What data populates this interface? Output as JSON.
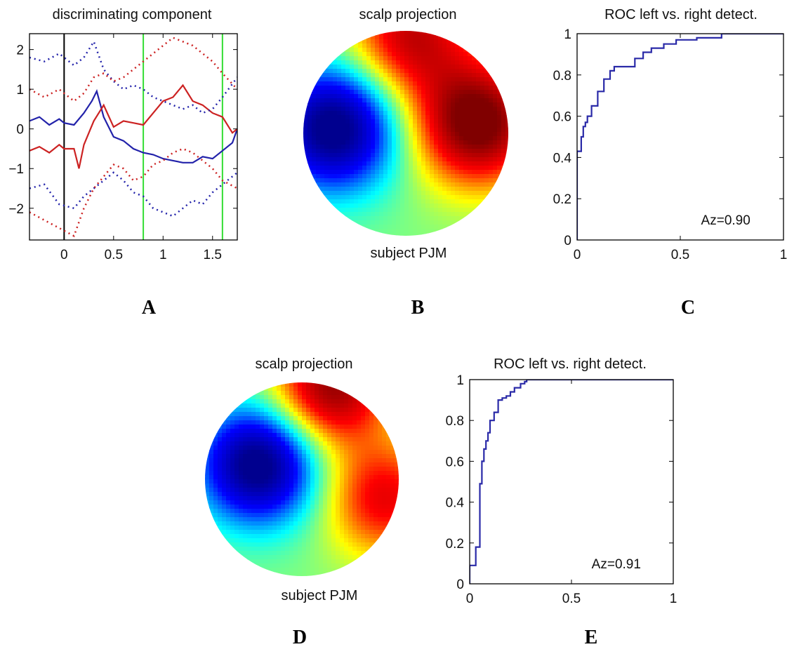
{
  "labels": {
    "A": "A",
    "B": "B",
    "C": "C",
    "D": "D",
    "E": "E"
  },
  "chart_data": [
    {
      "id": "A",
      "type": "line",
      "title": "discriminating component",
      "xlim": [
        -0.35,
        1.75
      ],
      "ylim": [
        -2.8,
        2.4
      ],
      "xticks": [
        0,
        0.5,
        1,
        1.5
      ],
      "xtick_labels": [
        "0",
        "0.5",
        "1",
        "1.5"
      ],
      "yticks": [
        -2,
        -1,
        0,
        1,
        2
      ],
      "ytick_labels": [
        "−2",
        "−1",
        "0",
        "1",
        "2"
      ],
      "vlines": [
        {
          "x": 0,
          "color": "#000000"
        },
        {
          "x": 0.8,
          "color": "#33dd33"
        },
        {
          "x": 1.6,
          "color": "#33dd33"
        }
      ],
      "series": [
        {
          "color": "#2222aa",
          "style": "solid",
          "x": [
            -0.35,
            -0.25,
            -0.15,
            -0.05,
            0.0,
            0.1,
            0.2,
            0.28,
            0.33,
            0.4,
            0.5,
            0.6,
            0.7,
            0.8,
            0.9,
            1.0,
            1.1,
            1.2,
            1.3,
            1.4,
            1.5,
            1.6,
            1.7,
            1.75
          ],
          "y": [
            0.2,
            0.3,
            0.1,
            0.25,
            0.15,
            0.1,
            0.4,
            0.7,
            0.95,
            0.3,
            -0.2,
            -0.3,
            -0.5,
            -0.6,
            -0.65,
            -0.75,
            -0.8,
            -0.85,
            -0.85,
            -0.7,
            -0.75,
            -0.55,
            -0.35,
            0.0
          ]
        },
        {
          "color": "#cc2222",
          "style": "solid",
          "x": [
            -0.35,
            -0.25,
            -0.15,
            -0.05,
            0.0,
            0.1,
            0.15,
            0.2,
            0.3,
            0.4,
            0.5,
            0.6,
            0.7,
            0.8,
            0.9,
            1.0,
            1.1,
            1.2,
            1.3,
            1.4,
            1.5,
            1.6,
            1.7,
            1.75
          ],
          "y": [
            -0.55,
            -0.45,
            -0.6,
            -0.4,
            -0.5,
            -0.5,
            -1.0,
            -0.4,
            0.2,
            0.6,
            0.05,
            0.2,
            0.15,
            0.1,
            0.4,
            0.7,
            0.8,
            1.1,
            0.7,
            0.6,
            0.4,
            0.3,
            -0.1,
            0.0
          ]
        },
        {
          "color": "#2222aa",
          "style": "dotted",
          "x": [
            -0.35,
            -0.2,
            -0.05,
            0.1,
            0.2,
            0.3,
            0.4,
            0.5,
            0.6,
            0.7,
            0.8,
            0.9,
            1.0,
            1.1,
            1.2,
            1.3,
            1.4,
            1.5,
            1.6,
            1.75
          ],
          "y": [
            1.8,
            1.7,
            1.9,
            1.6,
            1.8,
            2.2,
            1.5,
            1.2,
            1.0,
            1.1,
            1.0,
            0.8,
            0.7,
            0.6,
            0.5,
            0.6,
            0.4,
            0.5,
            0.8,
            1.3
          ]
        },
        {
          "color": "#2222aa",
          "style": "dotted",
          "x": [
            -0.35,
            -0.2,
            -0.05,
            0.1,
            0.2,
            0.3,
            0.4,
            0.5,
            0.6,
            0.7,
            0.8,
            0.9,
            1.0,
            1.1,
            1.2,
            1.3,
            1.4,
            1.5,
            1.6,
            1.75
          ],
          "y": [
            -1.5,
            -1.4,
            -1.9,
            -2.0,
            -1.7,
            -1.5,
            -1.3,
            -1.1,
            -1.3,
            -1.6,
            -1.7,
            -2.0,
            -2.1,
            -2.2,
            -2.0,
            -1.8,
            -1.9,
            -1.6,
            -1.4,
            -1.1
          ]
        },
        {
          "color": "#cc2222",
          "style": "dotted",
          "x": [
            -0.35,
            -0.2,
            -0.05,
            0.1,
            0.2,
            0.3,
            0.4,
            0.5,
            0.6,
            0.7,
            0.8,
            0.9,
            1.0,
            1.1,
            1.2,
            1.3,
            1.4,
            1.5,
            1.6,
            1.75
          ],
          "y": [
            1.0,
            0.8,
            1.0,
            0.7,
            0.9,
            1.3,
            1.4,
            1.2,
            1.3,
            1.5,
            1.7,
            1.9,
            2.1,
            2.3,
            2.2,
            2.1,
            1.9,
            1.7,
            1.4,
            1.0
          ]
        },
        {
          "color": "#cc2222",
          "style": "dotted",
          "x": [
            -0.35,
            -0.2,
            -0.05,
            0.1,
            0.2,
            0.3,
            0.4,
            0.5,
            0.6,
            0.7,
            0.8,
            0.9,
            1.0,
            1.1,
            1.2,
            1.3,
            1.4,
            1.5,
            1.6,
            1.75
          ],
          "y": [
            -2.1,
            -2.3,
            -2.5,
            -2.7,
            -2.0,
            -1.5,
            -1.2,
            -0.9,
            -1.0,
            -1.3,
            -1.2,
            -0.9,
            -0.8,
            -0.6,
            -0.5,
            -0.6,
            -0.8,
            -1.0,
            -1.3,
            -1.5
          ]
        }
      ]
    },
    {
      "id": "B",
      "type": "heatmap",
      "title": "scalp projection",
      "subtitle": "subject PJM",
      "colormap": [
        "#00008f",
        "#0000ff",
        "#00ffff",
        "#ffff00",
        "#ff0000",
        "#800000"
      ],
      "blobs": [
        {
          "x": -0.7,
          "y": -0.05,
          "value": -1.0
        },
        {
          "x": 0.7,
          "y": -0.1,
          "value": 1.0
        },
        {
          "x": 0.05,
          "y": -0.95,
          "value": 0.7
        }
      ]
    },
    {
      "id": "C",
      "type": "line",
      "title": "ROC left vs. right detect.",
      "annotation": "Az=0.90",
      "xlim": [
        0,
        1
      ],
      "ylim": [
        0,
        1
      ],
      "xticks": [
        0,
        0.5,
        1
      ],
      "xtick_labels": [
        "0",
        "0.5",
        "1"
      ],
      "yticks": [
        0,
        0.2,
        0.4,
        0.6,
        0.8,
        1
      ],
      "ytick_labels": [
        "0",
        "0.2",
        "0.4",
        "0.6",
        "0.8",
        "1"
      ],
      "series": [
        {
          "color": "#2a2aa8",
          "x": [
            0,
            0,
            0.02,
            0.02,
            0.03,
            0.03,
            0.04,
            0.04,
            0.05,
            0.05,
            0.07,
            0.07,
            0.1,
            0.1,
            0.13,
            0.13,
            0.16,
            0.16,
            0.18,
            0.18,
            0.28,
            0.28,
            0.32,
            0.32,
            0.36,
            0.36,
            0.42,
            0.42,
            0.48,
            0.48,
            0.58,
            0.58,
            0.7,
            0.7,
            1.0
          ],
          "y": [
            0,
            0.43,
            0.43,
            0.5,
            0.5,
            0.55,
            0.55,
            0.57,
            0.57,
            0.6,
            0.6,
            0.65,
            0.65,
            0.72,
            0.72,
            0.78,
            0.78,
            0.82,
            0.82,
            0.84,
            0.84,
            0.88,
            0.88,
            0.91,
            0.91,
            0.93,
            0.93,
            0.95,
            0.95,
            0.97,
            0.97,
            0.98,
            0.98,
            1.0,
            1.0
          ]
        }
      ]
    },
    {
      "id": "D",
      "type": "heatmap",
      "title": "scalp projection",
      "subtitle": "subject PJM",
      "colormap": [
        "#00008f",
        "#0000ff",
        "#00ffff",
        "#ffff00",
        "#ff0000",
        "#800000"
      ],
      "blobs": [
        {
          "x": -0.45,
          "y": -0.15,
          "value": -1.0
        },
        {
          "x": 0.3,
          "y": -0.95,
          "value": 0.85
        },
        {
          "x": 0.85,
          "y": 0.2,
          "value": 0.6
        }
      ]
    },
    {
      "id": "E",
      "type": "line",
      "title": "ROC left vs. right detect.",
      "annotation": "Az=0.91",
      "xlim": [
        0,
        1
      ],
      "ylim": [
        0,
        1
      ],
      "xticks": [
        0,
        0.5,
        1
      ],
      "xtick_labels": [
        "0",
        "0.5",
        "1"
      ],
      "yticks": [
        0,
        0.2,
        0.4,
        0.6,
        0.8,
        1
      ],
      "ytick_labels": [
        "0",
        "0.2",
        "0.4",
        "0.6",
        "0.8",
        "1"
      ],
      "series": [
        {
          "color": "#2a2aa8",
          "x": [
            0,
            0,
            0.03,
            0.03,
            0.05,
            0.05,
            0.06,
            0.06,
            0.07,
            0.07,
            0.08,
            0.08,
            0.09,
            0.09,
            0.1,
            0.1,
            0.12,
            0.12,
            0.14,
            0.14,
            0.16,
            0.16,
            0.18,
            0.18,
            0.2,
            0.2,
            0.22,
            0.22,
            0.25,
            0.25,
            0.27,
            0.27,
            0.28,
            0.28,
            1.0
          ],
          "y": [
            0,
            0.09,
            0.09,
            0.18,
            0.18,
            0.49,
            0.49,
            0.6,
            0.6,
            0.66,
            0.66,
            0.7,
            0.7,
            0.74,
            0.74,
            0.8,
            0.8,
            0.84,
            0.84,
            0.9,
            0.9,
            0.91,
            0.91,
            0.92,
            0.92,
            0.94,
            0.94,
            0.96,
            0.96,
            0.98,
            0.98,
            0.99,
            0.99,
            1.0,
            1.0
          ]
        }
      ]
    }
  ]
}
